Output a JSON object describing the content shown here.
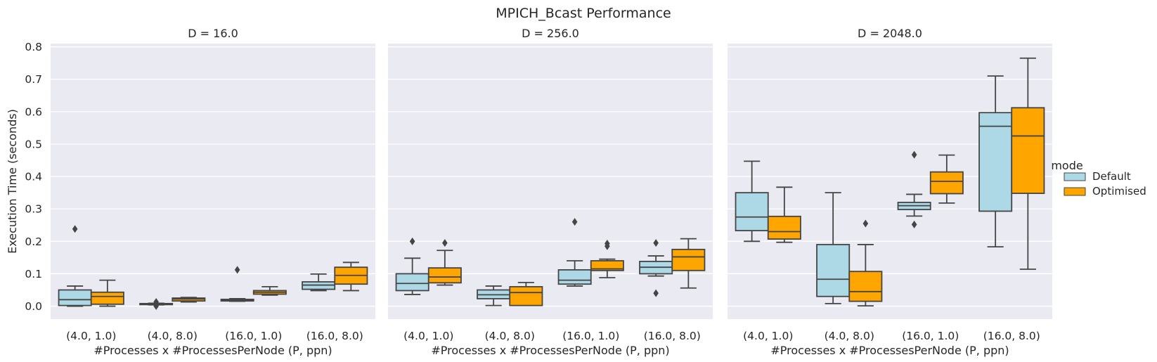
{
  "title": "MPICH_Bcast Performance",
  "chart_data": {
    "type": "box",
    "title": "MPICH_Bcast Performance",
    "ylabel": "Execution Time (seconds)",
    "xlabel": "#Processes x #ProcessesPerNode (P, ppn)",
    "ylim": [
      -0.04,
      0.81
    ],
    "yticks": [
      0.0,
      0.1,
      0.2,
      0.3,
      0.4,
      0.5,
      0.6,
      0.7,
      0.8
    ],
    "categories": [
      "(4.0, 1.0)",
      "(4.0, 8.0)",
      "(16.0, 1.0)",
      "(16.0, 8.0)"
    ],
    "grid": true,
    "legend": {
      "title": "mode",
      "placement": "right",
      "entries": [
        "Default",
        "Optimised"
      ]
    },
    "colors": {
      "Default": "#add8e6",
      "Optimised": "#ffa500",
      "background": "#eaeaf2",
      "line": "#454545"
    },
    "panels": [
      {
        "title": "D = 16.0",
        "series": [
          {
            "name": "Default",
            "boxes": [
              {
                "whislo": 0.0,
                "q1": 0.002,
                "med": 0.02,
                "q3": 0.05,
                "whishi": 0.062,
                "fliers": [
                  0.238
                ]
              },
              {
                "whislo": 0.004,
                "q1": 0.005,
                "med": 0.007,
                "q3": 0.008,
                "whishi": 0.009,
                "fliers": [
                  0.0,
                  0.003,
                  0.013
                ]
              },
              {
                "whislo": 0.015,
                "q1": 0.016,
                "med": 0.019,
                "q3": 0.021,
                "whishi": 0.023,
                "fliers": [
                  0.112
                ]
              },
              {
                "whislo": 0.048,
                "q1": 0.052,
                "med": 0.065,
                "q3": 0.075,
                "whishi": 0.099,
                "fliers": []
              }
            ]
          },
          {
            "name": "Optimised",
            "boxes": [
              {
                "whislo": 0.0,
                "q1": 0.006,
                "med": 0.03,
                "q3": 0.043,
                "whishi": 0.08,
                "fliers": []
              },
              {
                "whislo": 0.013,
                "q1": 0.016,
                "med": 0.022,
                "q3": 0.025,
                "whishi": 0.027,
                "fliers": []
              },
              {
                "whislo": 0.034,
                "q1": 0.037,
                "med": 0.043,
                "q3": 0.048,
                "whishi": 0.06,
                "fliers": []
              },
              {
                "whislo": 0.048,
                "q1": 0.068,
                "med": 0.095,
                "q3": 0.12,
                "whishi": 0.135,
                "fliers": []
              }
            ]
          }
        ]
      },
      {
        "title": "D = 256.0",
        "series": [
          {
            "name": "Default",
            "boxes": [
              {
                "whislo": 0.036,
                "q1": 0.048,
                "med": 0.07,
                "q3": 0.1,
                "whishi": 0.148,
                "fliers": [
                  0.2
                ]
              },
              {
                "whislo": 0.002,
                "q1": 0.023,
                "med": 0.035,
                "q3": 0.05,
                "whishi": 0.062,
                "fliers": []
              },
              {
                "whislo": 0.062,
                "q1": 0.068,
                "med": 0.08,
                "q3": 0.112,
                "whishi": 0.14,
                "fliers": [
                  0.26
                ]
              },
              {
                "whislo": 0.093,
                "q1": 0.1,
                "med": 0.12,
                "q3": 0.138,
                "whishi": 0.155,
                "fliers": [
                  0.04,
                  0.195
                ]
              }
            ]
          },
          {
            "name": "Optimised",
            "boxes": [
              {
                "whislo": 0.065,
                "q1": 0.072,
                "med": 0.09,
                "q3": 0.118,
                "whishi": 0.172,
                "fliers": [
                  0.195
                ]
              },
              {
                "whislo": 0.002,
                "q1": 0.002,
                "med": 0.042,
                "q3": 0.06,
                "whishi": 0.073,
                "fliers": []
              },
              {
                "whislo": 0.088,
                "q1": 0.11,
                "med": 0.115,
                "q3": 0.14,
                "whishi": 0.145,
                "fliers": [
                  0.185,
                  0.193
                ]
              },
              {
                "whislo": 0.056,
                "q1": 0.11,
                "med": 0.152,
                "q3": 0.175,
                "whishi": 0.208,
                "fliers": []
              }
            ]
          }
        ]
      },
      {
        "title": "D = 2048.0",
        "series": [
          {
            "name": "Default",
            "boxes": [
              {
                "whislo": 0.2,
                "q1": 0.233,
                "med": 0.275,
                "q3": 0.35,
                "whishi": 0.447,
                "fliers": []
              },
              {
                "whislo": 0.008,
                "q1": 0.03,
                "med": 0.083,
                "q3": 0.19,
                "whishi": 0.35,
                "fliers": []
              },
              {
                "whislo": 0.278,
                "q1": 0.298,
                "med": 0.31,
                "q3": 0.32,
                "whishi": 0.345,
                "fliers": [
                  0.252,
                  0.467
                ]
              },
              {
                "whislo": 0.183,
                "q1": 0.293,
                "med": 0.555,
                "q3": 0.597,
                "whishi": 0.71,
                "fliers": []
              }
            ]
          },
          {
            "name": "Optimised",
            "boxes": [
              {
                "whislo": 0.197,
                "q1": 0.207,
                "med": 0.23,
                "q3": 0.277,
                "whishi": 0.367,
                "fliers": []
              },
              {
                "whislo": 0.001,
                "q1": 0.015,
                "med": 0.045,
                "q3": 0.107,
                "whishi": 0.19,
                "fliers": [
                  0.255
                ]
              },
              {
                "whislo": 0.318,
                "q1": 0.347,
                "med": 0.385,
                "q3": 0.414,
                "whishi": 0.466,
                "fliers": []
              },
              {
                "whislo": 0.114,
                "q1": 0.348,
                "med": 0.525,
                "q3": 0.612,
                "whishi": 0.765,
                "fliers": []
              }
            ]
          }
        ]
      }
    ]
  }
}
